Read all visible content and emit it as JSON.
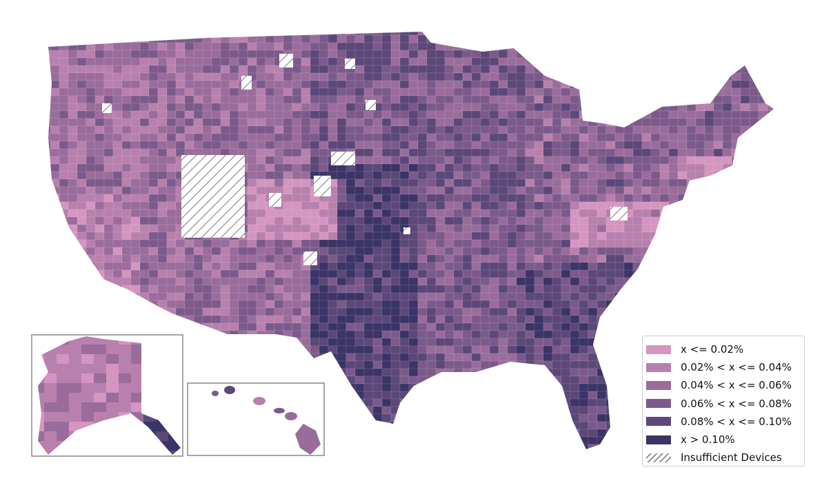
{
  "legend": {
    "items": [
      {
        "label": "x <= 0.02%",
        "color": "#d495c0"
      },
      {
        "label": "0.02% < x <= 0.04%",
        "color": "#b780ad"
      },
      {
        "label": "0.04% < x <= 0.06%",
        "color": "#9a6c9c"
      },
      {
        "label": "0.06% < x <= 0.08%",
        "color": "#7b5a8b"
      },
      {
        "label": "0.08% < x <= 0.10%",
        "color": "#5b4878"
      },
      {
        "label": "x > 0.10%",
        "color": "#3b3466"
      }
    ],
    "insufficient_label": "Insufficient Devices",
    "insufficient_pattern": "diagonal-hatch"
  },
  "insets": [
    "Alaska",
    "Hawaii"
  ]
}
